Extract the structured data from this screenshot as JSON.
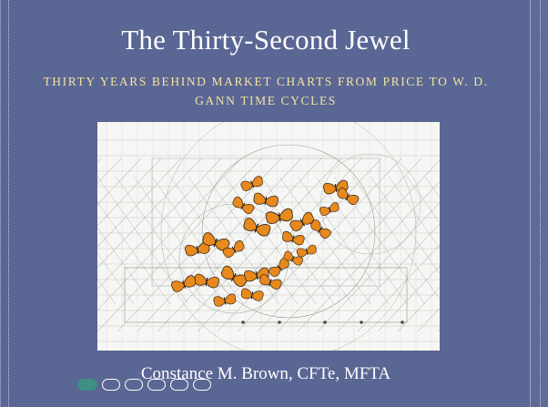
{
  "cover": {
    "title": "The Thirty-Second Jewel",
    "subtitle": "THIRTY YEARS BEHIND MARKET CHARTS FROM PRICE TO W. D. GANN TIME CYCLES",
    "author": "Constance M. Brown, CFTe, MFTA",
    "artwork_icon": "butterflies-geometry-drawing-icon"
  },
  "pagination": {
    "total": 6,
    "current": 1
  },
  "colors": {
    "cover_background": "#5a6693",
    "subtitle": "#f4e2a4",
    "title": "#ffffff",
    "active_dot": "#3f8f86",
    "butterfly": "#e8891d"
  }
}
